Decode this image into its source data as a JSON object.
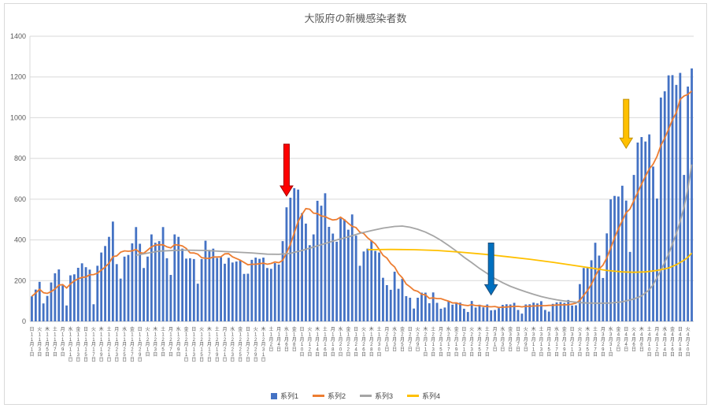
{
  "window": {
    "background": "#FFFFFF",
    "border_color": "#D9D9D9"
  },
  "chart_data": {
    "type": "bar",
    "title": "大阪府の新機感染者数",
    "xlabel": "",
    "ylabel": "",
    "ylim": [
      0,
      1400
    ],
    "y_ticks": [
      0,
      200,
      400,
      600,
      800,
      1000,
      1200,
      1400
    ],
    "grid": true,
    "legend_position": "bottom",
    "x_start_date": "2020-11-01",
    "x_label_interval_days": 2,
    "x_labels": [
      [
        "日",
        11,
        1
      ],
      [
        "火",
        11,
        3
      ],
      [
        "木",
        11,
        5
      ],
      [
        "土",
        11,
        7
      ],
      [
        "月",
        11,
        9
      ],
      [
        "水",
        11,
        11
      ],
      [
        "金",
        11,
        13
      ],
      [
        "日",
        11,
        15
      ],
      [
        "火",
        11,
        17
      ],
      [
        "木",
        11,
        19
      ],
      [
        "土",
        11,
        21
      ],
      [
        "月",
        11,
        23
      ],
      [
        "水",
        11,
        25
      ],
      [
        "金",
        11,
        27
      ],
      [
        "日",
        11,
        29
      ],
      [
        "火",
        12,
        1
      ],
      [
        "木",
        12,
        3
      ],
      [
        "土",
        12,
        5
      ],
      [
        "月",
        12,
        7
      ],
      [
        "水",
        12,
        9
      ],
      [
        "金",
        12,
        11
      ],
      [
        "日",
        12,
        13
      ],
      [
        "火",
        12,
        15
      ],
      [
        "木",
        12,
        17
      ],
      [
        "土",
        12,
        19
      ],
      [
        "月",
        12,
        21
      ],
      [
        "水",
        12,
        23
      ],
      [
        "金",
        12,
        25
      ],
      [
        "日",
        12,
        27
      ],
      [
        "火",
        12,
        29
      ],
      [
        "木",
        12,
        31
      ],
      [
        "土",
        1,
        2
      ],
      [
        "月",
        1,
        4
      ],
      [
        "水",
        1,
        6
      ],
      [
        "金",
        1,
        8
      ],
      [
        "日",
        1,
        10
      ],
      [
        "火",
        1,
        12
      ],
      [
        "木",
        1,
        14
      ],
      [
        "土",
        1,
        16
      ],
      [
        "月",
        1,
        18
      ],
      [
        "水",
        1,
        20
      ],
      [
        "金",
        1,
        22
      ],
      [
        "日",
        1,
        24
      ],
      [
        "火",
        1,
        26
      ],
      [
        "木",
        1,
        28
      ],
      [
        "土",
        1,
        30
      ],
      [
        "月",
        2,
        1
      ],
      [
        "水",
        2,
        3
      ],
      [
        "金",
        2,
        5
      ],
      [
        "日",
        2,
        7
      ],
      [
        "火",
        2,
        9
      ],
      [
        "木",
        2,
        11
      ],
      [
        "土",
        2,
        13
      ],
      [
        "月",
        2,
        15
      ],
      [
        "水",
        2,
        17
      ],
      [
        "金",
        2,
        19
      ],
      [
        "日",
        2,
        21
      ],
      [
        "火",
        2,
        23
      ],
      [
        "木",
        2,
        25
      ],
      [
        "土",
        2,
        27
      ],
      [
        "月",
        3,
        1
      ],
      [
        "水",
        3,
        3
      ],
      [
        "金",
        3,
        5
      ],
      [
        "日",
        3,
        7
      ],
      [
        "火",
        3,
        9
      ],
      [
        "木",
        3,
        11
      ],
      [
        "土",
        3,
        13
      ],
      [
        "月",
        3,
        15
      ],
      [
        "水",
        3,
        17
      ],
      [
        "金",
        3,
        19
      ],
      [
        "日",
        3,
        21
      ],
      [
        "火",
        3,
        23
      ],
      [
        "木",
        3,
        25
      ],
      [
        "土",
        3,
        27
      ],
      [
        "月",
        3,
        29
      ],
      [
        "水",
        3,
        31
      ],
      [
        "金",
        4,
        2
      ],
      [
        "日",
        4,
        4
      ],
      [
        "火",
        4,
        6
      ],
      [
        "木",
        4,
        8
      ],
      [
        "土",
        4,
        10
      ],
      [
        "月",
        4,
        12
      ],
      [
        "水",
        4,
        14
      ],
      [
        "金",
        4,
        16
      ],
      [
        "日",
        4,
        18
      ],
      [
        "火",
        4,
        20
      ]
    ],
    "series": [
      {
        "name": "系列1",
        "type": "bar",
        "color": "#4472C4",
        "values": [
          123,
          156,
          194,
          88,
          125,
          191,
          236,
          255,
          176,
          78,
          226,
          231,
          263,
          285,
          266,
          254,
          84,
          273,
          338,
          370,
          415,
          490,
          281,
          210,
          318,
          326,
          383,
          463,
          381,
          262,
          318,
          427,
          386,
          394,
          463,
          310,
          228,
          427,
          415,
          357,
          308,
          310,
          306,
          185,
          306,
          396,
          351,
          357,
          311,
          315,
          283,
          312,
          289,
          294,
          299,
          233,
          234,
          302,
          313,
          307,
          313,
          262,
          258,
          286,
          279,
          394,
          560,
          607,
          654,
          647,
          532,
          480,
          374,
          427,
          592,
          568,
          629,
          464,
          431,
          391,
          506,
          501,
          450,
          525,
          421,
          273,
          343,
          357,
          397,
          346,
          338,
          214,
          178,
          155,
          244,
          160,
          209,
          124,
          116,
          63,
          116,
          141,
          141,
          89,
          142,
          91,
          62,
          68,
          100,
          82,
          91,
          92,
          62,
          46,
          100,
          68,
          82,
          69,
          83,
          54,
          56,
          65,
          81,
          84,
          83,
          91,
          56,
          38,
          83,
          84,
          92,
          88,
          99,
          56,
          48,
          86,
          93,
          95,
          91,
          105,
          78,
          79,
          183,
          262,
          266,
          300,
          386,
          323,
          213,
          432,
          599,
          616,
          613,
          666,
          593,
          341,
          719,
          878,
          905,
          883,
          918,
          760,
          603,
          1099,
          1130,
          1208,
          1209,
          1161,
          1220,
          719,
          1153,
          1242
        ]
      },
      {
        "name": "系列2",
        "type": "line",
        "color": "#ED7D31",
        "derived_from": "系列1",
        "derivation": "7-day trailing moving average"
      },
      {
        "name": "系列3",
        "type": "line",
        "color": "#A5A5A5",
        "points": [
          [
            28,
            325
          ],
          [
            34,
            345
          ],
          [
            40,
            350
          ],
          [
            46,
            348
          ],
          [
            52,
            342
          ],
          [
            58,
            336
          ],
          [
            62,
            330
          ],
          [
            65,
            329
          ],
          [
            68,
            334
          ],
          [
            71,
            348
          ],
          [
            74,
            365
          ],
          [
            77,
            382
          ],
          [
            80,
            400
          ],
          [
            83,
            415
          ],
          [
            86,
            432
          ],
          [
            89,
            446
          ],
          [
            92,
            458
          ],
          [
            95,
            466
          ],
          [
            97,
            468
          ],
          [
            99,
            462
          ],
          [
            101,
            452
          ],
          [
            103,
            438
          ],
          [
            105,
            420
          ],
          [
            107,
            398
          ],
          [
            109,
            372
          ],
          [
            111,
            345
          ],
          [
            113,
            315
          ],
          [
            115,
            288
          ],
          [
            117,
            260
          ],
          [
            119,
            235
          ],
          [
            121,
            210
          ],
          [
            123,
            190
          ],
          [
            125,
            172
          ],
          [
            127,
            158
          ],
          [
            129,
            145
          ],
          [
            131,
            133
          ],
          [
            133,
            122
          ],
          [
            135,
            113
          ],
          [
            137,
            106
          ],
          [
            139,
            100
          ],
          [
            141,
            96
          ],
          [
            143,
            92
          ],
          [
            145,
            90
          ],
          [
            148,
            89
          ],
          [
            151,
            90
          ],
          [
            154,
            96
          ],
          [
            157,
            110
          ],
          [
            159,
            125
          ],
          [
            161,
            155
          ],
          [
            162,
            180
          ],
          [
            163,
            215
          ],
          [
            164,
            250
          ],
          [
            165,
            290
          ],
          [
            166,
            330
          ],
          [
            167,
            380
          ],
          [
            168,
            430
          ],
          [
            169,
            490
          ],
          [
            170,
            560
          ],
          [
            171,
            650
          ],
          [
            172,
            770
          ]
        ]
      },
      {
        "name": "系列4",
        "type": "line",
        "color": "#FFC000",
        "points": [
          [
            88,
            352
          ],
          [
            94,
            353
          ],
          [
            100,
            352
          ],
          [
            106,
            348
          ],
          [
            112,
            340
          ],
          [
            118,
            330
          ],
          [
            124,
            318
          ],
          [
            130,
            305
          ],
          [
            136,
            290
          ],
          [
            141,
            276
          ],
          [
            146,
            262
          ],
          [
            150,
            250
          ],
          [
            154,
            243
          ],
          [
            157,
            241
          ],
          [
            160,
            243
          ],
          [
            163,
            250
          ],
          [
            166,
            262
          ],
          [
            168,
            278
          ],
          [
            170,
            300
          ],
          [
            171,
            315
          ],
          [
            172,
            335
          ]
        ]
      }
    ],
    "annotations": [
      {
        "name": "red-arrow",
        "shape": "down-arrow",
        "fill": "#FF0000",
        "stroke": "#A00000",
        "day": 67,
        "tail_value": 870,
        "tip_value": 615
      },
      {
        "name": "blue-arrow",
        "shape": "down-arrow",
        "fill": "#0070C0",
        "stroke": "#1F4E79",
        "day": 120,
        "tail_value": 385,
        "tip_value": 130
      },
      {
        "name": "yellow-arrow",
        "shape": "down-arrow",
        "fill": "#FFC000",
        "stroke": "#BF8F00",
        "day": 155,
        "tail_value": 1090,
        "tip_value": 850
      }
    ],
    "axis_colors": {
      "gridline": "#D9D9D9",
      "axis_line": "#BFBFBF",
      "tick_label": "#595959"
    }
  },
  "legend": {
    "items": [
      "系列1",
      "系列2",
      "系列3",
      "系列4"
    ]
  }
}
